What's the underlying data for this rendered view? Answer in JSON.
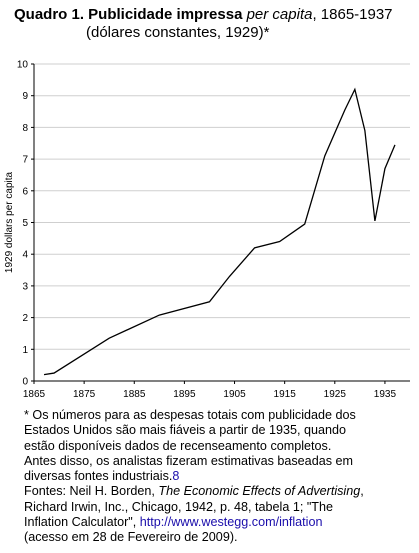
{
  "title": {
    "prefix": "Quadro 1. Publicidade impressa ",
    "italic": "per capita",
    "suffix": ", 1865-1937",
    "line2": "(dólares constantes, 1929)*"
  },
  "chart_data": {
    "type": "line",
    "title": "Quadro 1. Publicidade impressa per capita, 1865-1937 (dólares constantes, 1929)*",
    "xlabel": "",
    "ylabel": "1929 dollars per capita",
    "xlim": [
      1865,
      1940
    ],
    "ylim": [
      0,
      10
    ],
    "xticks": [
      1865,
      1875,
      1885,
      1895,
      1905,
      1915,
      1925,
      1935
    ],
    "yticks": [
      0,
      1,
      2,
      3,
      4,
      5,
      6,
      7,
      8,
      9,
      10
    ],
    "grid": true,
    "series": [
      {
        "x": [
          1867,
          1869,
          1880,
          1890,
          1900,
          1904,
          1909,
          1914,
          1919,
          1923,
          1927,
          1929,
          1931,
          1933,
          1935,
          1937
        ],
        "y": [
          0.2,
          0.25,
          1.35,
          2.08,
          2.5,
          3.3,
          4.2,
          4.4,
          4.95,
          7.1,
          8.55,
          9.2,
          7.9,
          5.05,
          6.7,
          7.45
        ]
      }
    ],
    "color": "#000000"
  },
  "notes": {
    "line1": "* Os números para as despesas totais com publicidade dos",
    "line2": "Estados Unidos são mais fiáveis a partir de 1935, quando",
    "line3": "estão disponíveis dados de recenseamento completos.",
    "line4": "Antes disso, os analistas fizeram estimativas baseadas em",
    "line5_text": "diversas fontes industriais.",
    "line5_ref": "8",
    "line6_text": "Fontes: Neil H. Borden, ",
    "line6_italic": "The Economic Effects of Advertising",
    "line6_end": ",",
    "line7": "Richard Irwin, Inc., Chicago, 1942, p. 48, tabela 1; \"The",
    "line8_text": "Inflation Calculator\", ",
    "line8_link": "http://www.westegg.com/inflation",
    "line9": "(acesso em 28 de Fevereiro de 2009)."
  }
}
